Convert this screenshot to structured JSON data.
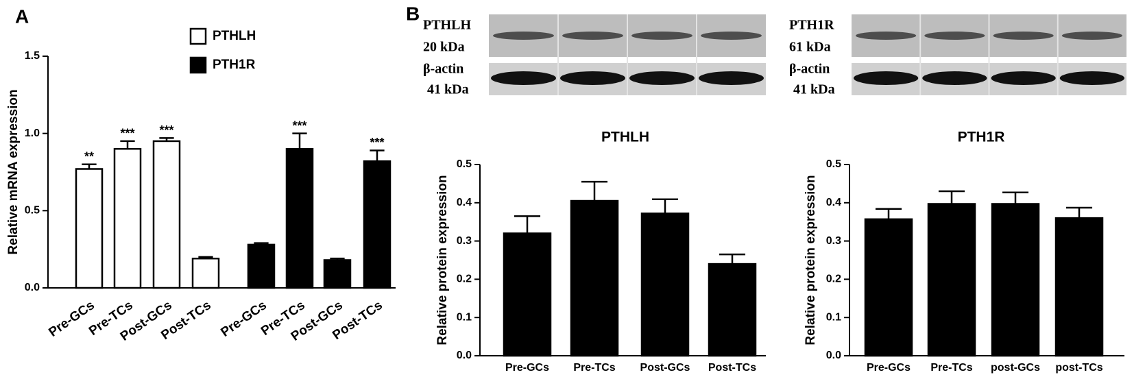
{
  "panel_labels": [
    "A",
    "B"
  ],
  "blots": [
    {
      "protein": "PTHLH",
      "protein_size": "20 kDa",
      "control": "β-actin",
      "control_size": "41 kDa"
    },
    {
      "protein": "PTH1R",
      "protein_size": "61 kDa",
      "control": "β-actin",
      "control_size": "41 kDa"
    }
  ],
  "chart_data": [
    {
      "type": "bar",
      "y_label": "Relative mRNA expression",
      "categories": [
        "Pre-GCs",
        "Pre-TCs",
        "Post-GCs",
        "Post-TCs"
      ],
      "series": [
        {
          "name": "PTHLH",
          "color": "#ffffff",
          "values": [
            0.77,
            0.9,
            0.95,
            0.19
          ],
          "errors": [
            0.03,
            0.05,
            0.02,
            0.01
          ],
          "annotations": [
            "**",
            "***",
            "***",
            null
          ]
        },
        {
          "name": "PTH1R",
          "color": "#000000",
          "values": [
            0.28,
            0.9,
            0.18,
            0.82
          ],
          "errors": [
            0.01,
            0.1,
            0.01,
            0.07
          ],
          "annotations": [
            null,
            "***",
            null,
            "***"
          ]
        }
      ],
      "ylim": [
        0,
        1.5
      ],
      "yticks": [
        {
          "value": 0,
          "label": "0.0"
        },
        0.5,
        {
          "value": 1,
          "label": "1.0"
        },
        1.5
      ]
    },
    {
      "type": "bar",
      "title": "PTHLH",
      "y_label": "Relative protein expression",
      "categories": [
        "Pre-GCs",
        "Pre-TCs",
        "Post-GCs",
        "Post-TCs"
      ],
      "values": [
        0.32,
        0.405,
        0.372,
        0.24
      ],
      "errors": [
        0.045,
        0.05,
        0.037,
        0.025
      ],
      "color": "#000000",
      "ylim": [
        0,
        0.5
      ],
      "yticks": [
        {
          "value": 0,
          "label": "0.0"
        },
        0.1,
        0.2,
        0.3,
        0.4,
        0.5
      ]
    },
    {
      "type": "bar",
      "title": "PTH1R",
      "y_label": "Relative protein expression",
      "categories": [
        "Pre-GCs",
        "Pre-TCs",
        "post-GCs",
        "post-TCs"
      ],
      "values": [
        0.357,
        0.397,
        0.397,
        0.36
      ],
      "errors": [
        0.027,
        0.033,
        0.03,
        0.027
      ],
      "color": "#000000",
      "ylim": [
        0,
        0.5
      ],
      "yticks": [
        {
          "value": 0,
          "label": "0.0"
        },
        0.1,
        0.2,
        0.3,
        0.4,
        0.5
      ]
    }
  ]
}
